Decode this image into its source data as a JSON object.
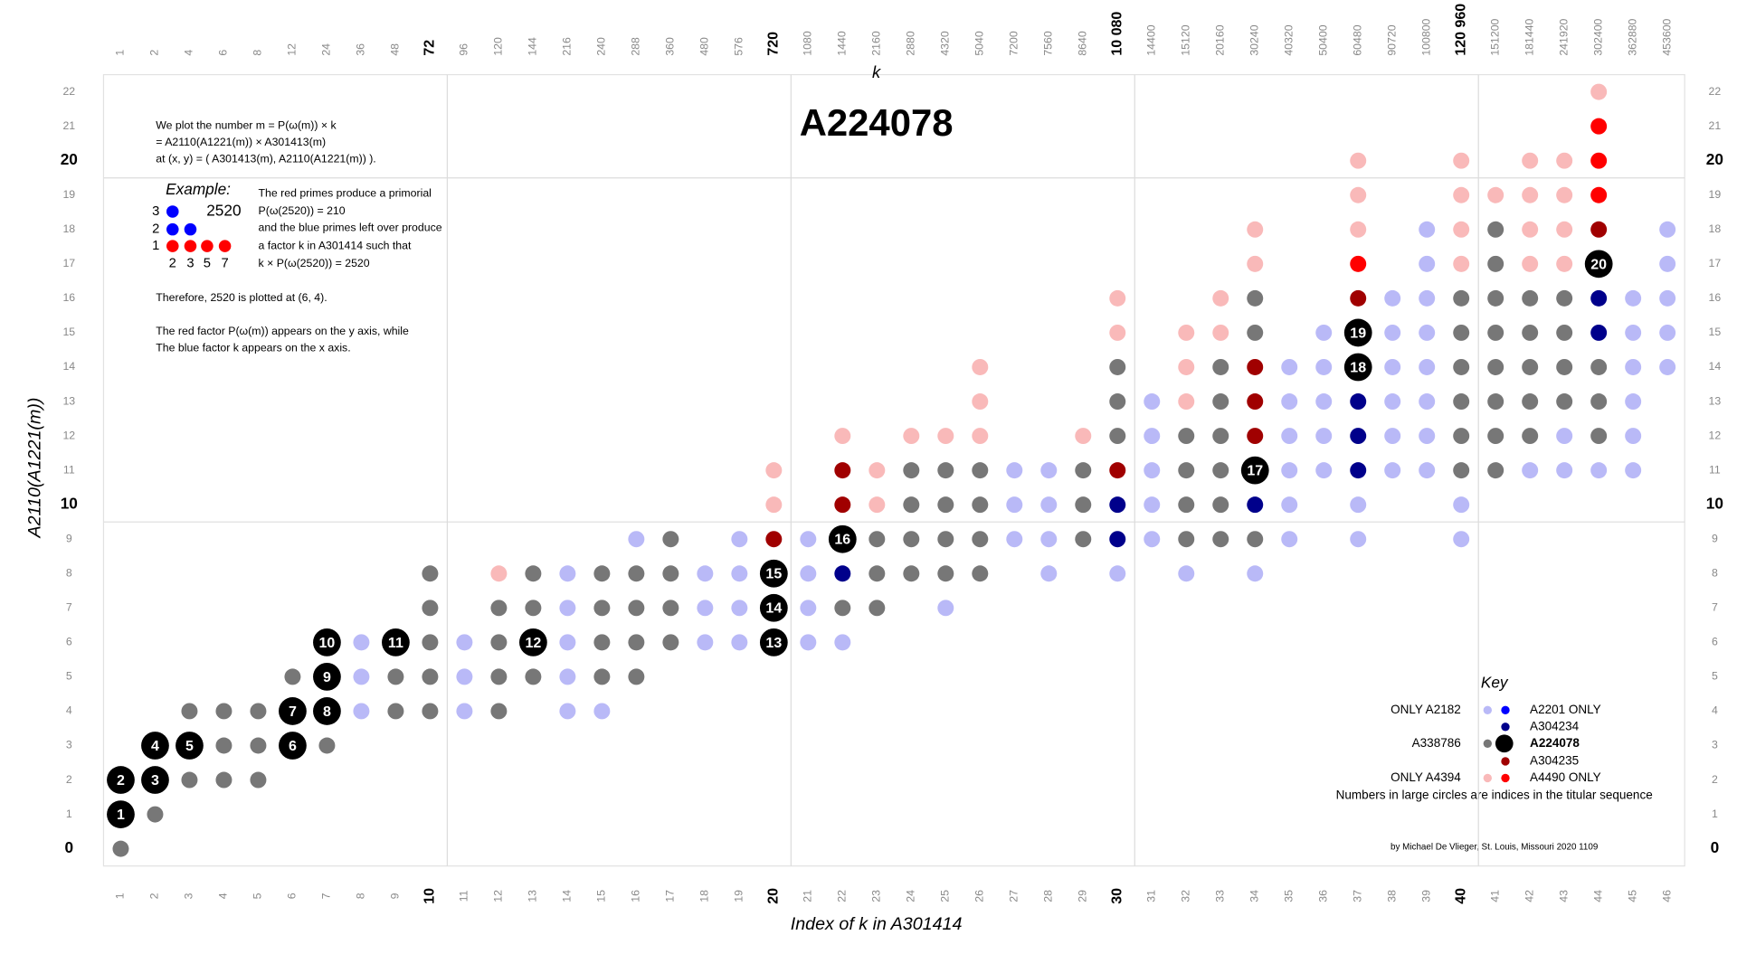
{
  "chart_data": {
    "type": "dot-grid",
    "title": "A224078",
    "x_label": "Index of k in A301414",
    "top_label": "k",
    "y_label": "A2110(A1221(m))",
    "xlim": [
      0.5,
      46.5
    ],
    "ylim": [
      -0.5,
      22.5
    ],
    "xticks": [
      1,
      2,
      3,
      4,
      5,
      6,
      7,
      8,
      9,
      10,
      11,
      12,
      13,
      14,
      15,
      16,
      17,
      18,
      19,
      20,
      21,
      22,
      23,
      24,
      25,
      26,
      27,
      28,
      29,
      30,
      31,
      32,
      33,
      34,
      35,
      36,
      37,
      38,
      39,
      40,
      41,
      42,
      43,
      44,
      45,
      46
    ],
    "yticks": [
      0,
      1,
      2,
      3,
      4,
      5,
      6,
      7,
      8,
      9,
      10,
      11,
      12,
      13,
      14,
      15,
      16,
      17,
      18,
      19,
      20,
      21,
      22
    ],
    "major_tick_every": 10,
    "k_values": [
      1,
      2,
      4,
      6,
      8,
      12,
      24,
      36,
      48,
      72,
      96,
      120,
      144,
      216,
      240,
      288,
      360,
      480,
      576,
      720,
      1080,
      1440,
      2160,
      2880,
      4320,
      5040,
      7200,
      7560,
      8640,
      {
        "value": 10080,
        "label": "10 080"
      },
      14400,
      15120,
      20160,
      30240,
      40320,
      50400,
      60480,
      90720,
      100800,
      {
        "value": 120960,
        "label": "120 960"
      },
      151200,
      181440,
      241920,
      302400,
      362880,
      453600
    ],
    "series": [
      {
        "name": "ONLY A2182",
        "color": "#b9b9f7",
        "x": [
          8,
          11,
          14,
          15,
          8,
          11,
          14,
          8,
          11,
          14,
          18,
          19,
          21,
          22,
          14,
          18,
          19,
          21,
          25,
          14,
          18,
          19,
          21,
          28,
          30,
          32,
          34,
          16,
          19,
          21,
          27,
          28,
          31,
          35,
          37,
          40,
          27,
          28,
          31,
          35,
          37,
          40,
          27,
          28,
          31,
          35,
          36,
          38,
          39,
          42,
          43,
          44,
          45,
          31,
          35,
          36,
          38,
          39,
          43,
          45,
          31,
          35,
          36,
          38,
          39,
          45,
          35,
          36,
          38,
          39,
          45,
          46,
          36,
          38,
          39,
          45,
          46,
          38,
          39,
          45,
          46,
          39,
          46,
          39,
          46
        ],
        "y": [
          4,
          4,
          4,
          4,
          5,
          5,
          5,
          6,
          6,
          6,
          6,
          6,
          6,
          6,
          7,
          7,
          7,
          7,
          7,
          8,
          8,
          8,
          8,
          8,
          8,
          8,
          8,
          9,
          9,
          9,
          9,
          9,
          9,
          9,
          9,
          9,
          10,
          10,
          10,
          10,
          10,
          10,
          11,
          11,
          11,
          11,
          11,
          11,
          11,
          11,
          11,
          11,
          11,
          12,
          12,
          12,
          12,
          12,
          12,
          12,
          13,
          13,
          13,
          13,
          13,
          13,
          14,
          14,
          14,
          14,
          14,
          14,
          15,
          15,
          15,
          15,
          15,
          16,
          16,
          16,
          16,
          17,
          17,
          18,
          18
        ]
      },
      {
        "name": "A2201 ONLY",
        "color": "#0000ff",
        "x": [],
        "y": []
      },
      {
        "name": "A304234",
        "color": "#00008b",
        "x": [
          22,
          30,
          30,
          34,
          37,
          37,
          37,
          44,
          44
        ],
        "y": [
          8,
          9,
          10,
          10,
          11,
          12,
          13,
          15,
          16
        ]
      },
      {
        "name": "A338786",
        "color": "#777777",
        "x": [
          1,
          2,
          3,
          4,
          5,
          4,
          5,
          7,
          3,
          4,
          5,
          9,
          10,
          12,
          6,
          9,
          10,
          12,
          13,
          15,
          16,
          10,
          12,
          15,
          16,
          17,
          10,
          12,
          13,
          15,
          16,
          17,
          22,
          23,
          10,
          13,
          15,
          16,
          17,
          23,
          24,
          25,
          26,
          17,
          23,
          24,
          25,
          26,
          29,
          32,
          33,
          34,
          24,
          25,
          26,
          29,
          32,
          33,
          24,
          25,
          26,
          29,
          32,
          33,
          40,
          41,
          30,
          32,
          33,
          40,
          41,
          42,
          44,
          30,
          33,
          40,
          41,
          42,
          43,
          44,
          30,
          33,
          40,
          41,
          42,
          43,
          44,
          34,
          40,
          41,
          42,
          43,
          34,
          40,
          41,
          42,
          43,
          41,
          41
        ],
        "y": [
          0,
          1,
          2,
          2,
          2,
          3,
          3,
          3,
          4,
          4,
          4,
          4,
          4,
          4,
          5,
          5,
          5,
          5,
          5,
          5,
          5,
          6,
          6,
          6,
          6,
          6,
          7,
          7,
          7,
          7,
          7,
          7,
          7,
          7,
          8,
          8,
          8,
          8,
          8,
          8,
          8,
          8,
          8,
          9,
          9,
          9,
          9,
          9,
          9,
          9,
          9,
          9,
          10,
          10,
          10,
          10,
          10,
          10,
          11,
          11,
          11,
          11,
          11,
          11,
          11,
          11,
          12,
          12,
          12,
          12,
          12,
          12,
          12,
          13,
          13,
          13,
          13,
          13,
          13,
          13,
          14,
          14,
          14,
          14,
          14,
          14,
          14,
          15,
          15,
          15,
          15,
          15,
          16,
          16,
          16,
          16,
          16,
          17,
          18
        ]
      },
      {
        "name": "A224078",
        "color": "#000000",
        "x": [
          1,
          1,
          2,
          2,
          3,
          6,
          6,
          7,
          7,
          7,
          9,
          13,
          20,
          20,
          20,
          22,
          34,
          37,
          37,
          44
        ],
        "y": [
          1,
          2,
          2,
          3,
          3,
          3,
          4,
          4,
          5,
          6,
          6,
          6,
          6,
          7,
          8,
          9,
          11,
          14,
          15,
          17
        ],
        "labels": [
          1,
          2,
          3,
          4,
          5,
          6,
          7,
          8,
          9,
          10,
          11,
          12,
          13,
          14,
          15,
          16,
          17,
          18,
          19,
          20
        ]
      },
      {
        "name": "A304235",
        "color": "#a00000",
        "x": [
          20,
          22,
          22,
          30,
          34,
          34,
          34,
          37,
          44
        ],
        "y": [
          9,
          10,
          11,
          11,
          12,
          13,
          14,
          16,
          18
        ]
      },
      {
        "name": "ONLY A4394",
        "color": "#f9b9b9",
        "x": [
          12,
          20,
          23,
          20,
          23,
          22,
          24,
          25,
          26,
          29,
          26,
          32,
          26,
          32,
          30,
          32,
          33,
          30,
          33,
          34,
          40,
          42,
          43,
          34,
          37,
          40,
          42,
          43,
          37,
          40,
          41,
          42,
          43,
          37,
          40,
          42,
          43,
          44
        ],
        "y": [
          8,
          10,
          10,
          11,
          11,
          12,
          12,
          12,
          12,
          12,
          13,
          13,
          14,
          14,
          15,
          15,
          15,
          16,
          16,
          17,
          17,
          17,
          17,
          18,
          18,
          18,
          18,
          18,
          19,
          19,
          19,
          19,
          19,
          20,
          20,
          20,
          20,
          22
        ]
      },
      {
        "name": "A4490 ONLY",
        "color": "#ff0000",
        "x": [
          37,
          44,
          44,
          44
        ],
        "y": [
          17,
          19,
          20,
          21
        ]
      }
    ],
    "key_title": "Key",
    "key_note": "Numbers in large circles are indices in the titular sequence",
    "credit": "by Michael De Vlieger, St. Louis, Missouri 2020 1109",
    "notes": [
      "We plot the number m = P(ω(m)) × k",
      "= A2110(A1221(m)) × A301413(m)",
      "at (x, y) = ( A301413(m), A2110(A1221(m)) )."
    ],
    "example": {
      "heading": "Example:",
      "rows": [
        3,
        2,
        1
      ],
      "cols": [
        2,
        3,
        5,
        7
      ],
      "number": 2520,
      "text": [
        "The red primes produce a primorial",
        "P(ω(2520)) = 210",
        "and the blue primes left over produce",
        "a factor k in A301414 such that",
        "k × P(ω(2520)) = 2520"
      ]
    },
    "conclusion": "Therefore, 2520 is plotted at (6, 4).",
    "closing": [
      "The red factor P(ω(m)) appears on the y axis, while",
      "The blue factor k appears on the x axis."
    ]
  }
}
